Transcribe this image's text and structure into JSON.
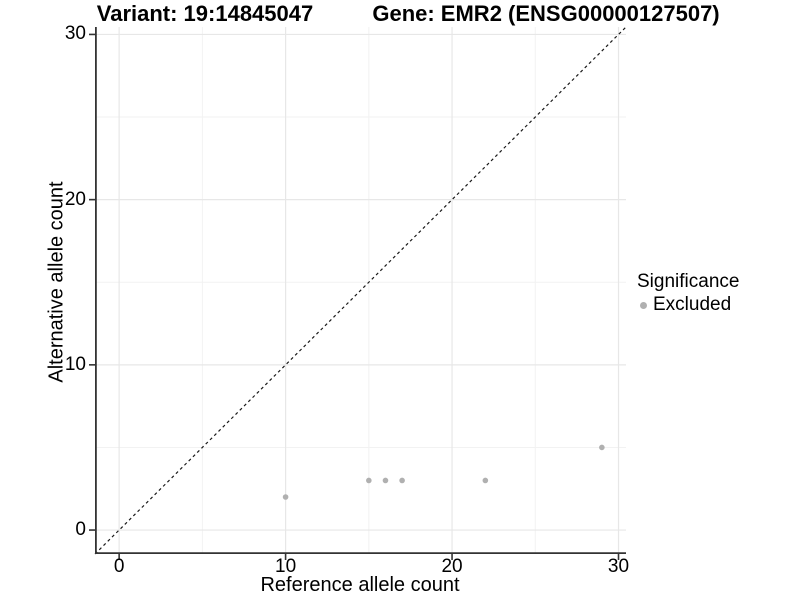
{
  "titles": {
    "left": "Variant: 19:14845047",
    "right": "Gene: EMR2 (ENSG00000127507)"
  },
  "legend": {
    "title": "Significance",
    "entries": [
      {
        "label": "Excluded",
        "color": "#b0b0b0"
      }
    ]
  },
  "chart_data": {
    "type": "scatter",
    "title": "Variant: 19:14845047   Gene: EMR2 (ENSG00000127507)",
    "xlabel": "Reference allele count",
    "ylabel": "Alternative allele count",
    "x_domain": [
      -1.45,
      30.45
    ],
    "y_domain": [
      -1.45,
      30.45
    ],
    "x_ticks": [
      0,
      10,
      20,
      30
    ],
    "y_ticks": [
      0,
      10,
      20,
      30
    ],
    "x_minor_ticks": [
      5,
      15,
      25
    ],
    "y_minor_ticks": [
      5,
      15,
      25
    ],
    "grid": true,
    "legend_position": "right",
    "identity_line": {
      "slope": 1,
      "intercept": 0,
      "style": "dashed",
      "color": "#1a1a1a"
    },
    "series": [
      {
        "name": "Excluded",
        "color": "#b0b0b0",
        "points": [
          {
            "x": 10,
            "y": 2
          },
          {
            "x": 15,
            "y": 3
          },
          {
            "x": 16,
            "y": 3
          },
          {
            "x": 17,
            "y": 3
          },
          {
            "x": 22,
            "y": 3
          },
          {
            "x": 29,
            "y": 5
          }
        ]
      }
    ],
    "colors": {
      "major_grid": "#e7e7e7",
      "minor_grid": "#f2f2f2",
      "axis_line": "#333333",
      "tick": "#333333"
    }
  }
}
